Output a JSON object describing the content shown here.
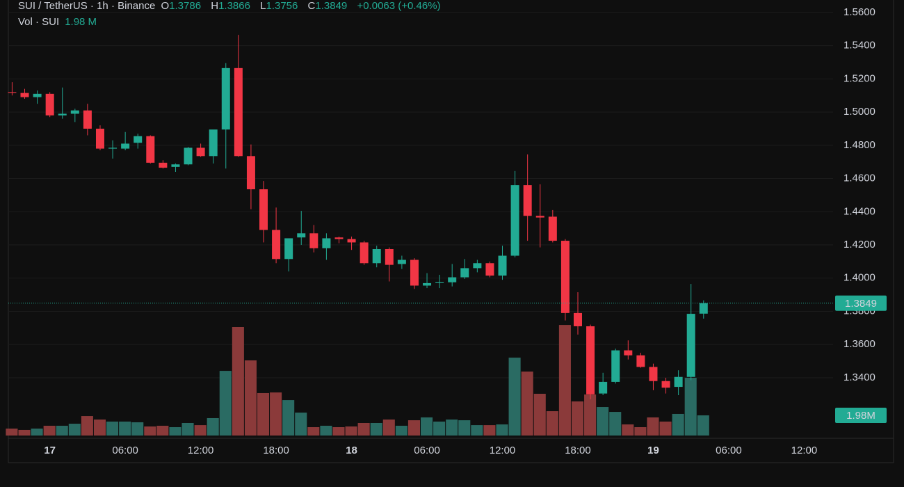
{
  "chart_data": {
    "type": "candlestick",
    "title": "SUI / TetherUS · 1h · Binance",
    "ohlc_labels": [
      "O",
      "H",
      "L",
      "C"
    ],
    "change": "+0.0063 (+0.46%)",
    "up_color": "#22ab94",
    "down_color": "#f23645",
    "grid": true,
    "last_price_line": true,
    "x": [
      -3,
      -2,
      -1,
      0,
      1,
      2,
      3,
      4,
      5,
      6,
      7,
      8,
      9,
      10,
      11,
      12,
      13,
      14,
      15,
      16,
      17,
      18,
      19,
      20,
      21,
      22,
      23,
      24,
      25,
      26,
      27,
      28,
      29,
      30,
      31,
      32,
      33,
      34,
      35,
      36,
      37,
      38,
      39,
      40,
      41,
      42,
      43,
      44,
      45,
      46,
      47,
      48,
      49,
      50,
      51,
      52
    ],
    "open": [
      1.512,
      1.5115,
      1.509,
      1.511,
      1.498,
      1.499,
      1.501,
      1.49,
      1.478,
      1.478,
      1.4815,
      1.4855,
      1.4695,
      1.467,
      1.4685,
      1.4785,
      1.4735,
      1.4895,
      1.5265,
      1.4735,
      1.4535,
      1.429,
      1.4115,
      1.4245,
      1.427,
      1.418,
      1.4245,
      1.4235,
      1.4215,
      1.409,
      1.4175,
      1.4085,
      1.411,
      1.3955,
      1.397,
      1.3975,
      1.4005,
      1.406,
      1.409,
      1.4015,
      1.4135,
      1.456,
      1.4375,
      1.437,
      1.4225,
      1.379,
      1.371,
      1.3305,
      1.3375,
      1.3565,
      1.3535,
      1.3465,
      1.338,
      1.3345,
      1.3405,
      1.3786
    ],
    "high": [
      1.518,
      1.514,
      1.513,
      1.512,
      1.5148,
      1.502,
      1.505,
      1.492,
      1.483,
      1.488,
      1.487,
      1.486,
      1.471,
      1.469,
      1.479,
      1.481,
      1.489,
      1.5295,
      1.5465,
      1.4805,
      1.4585,
      1.4425,
      1.424,
      1.4405,
      1.432,
      1.427,
      1.425,
      1.425,
      1.4225,
      1.4195,
      1.4185,
      1.4135,
      1.412,
      1.403,
      1.402,
      1.4085,
      1.4115,
      1.411,
      1.41,
      1.4195,
      1.4645,
      1.4745,
      1.4565,
      1.441,
      1.4235,
      1.3915,
      1.372,
      1.343,
      1.3575,
      1.3625,
      1.355,
      1.3485,
      1.34,
      1.3445,
      1.3965,
      1.3866
    ],
    "low": [
      1.51,
      1.508,
      1.505,
      1.497,
      1.496,
      1.494,
      1.486,
      1.477,
      1.472,
      1.477,
      1.478,
      1.469,
      1.466,
      1.464,
      1.468,
      1.473,
      1.469,
      1.466,
      1.473,
      1.4415,
      1.4215,
      1.409,
      1.404,
      1.42,
      1.4155,
      1.411,
      1.421,
      1.417,
      1.408,
      1.4065,
      1.398,
      1.4055,
      1.3935,
      1.394,
      1.394,
      1.395,
      1.3995,
      1.4035,
      1.4005,
      1.399,
      1.4125,
      1.4225,
      1.4185,
      1.4215,
      1.3745,
      1.366,
      1.327,
      1.3295,
      1.3365,
      1.351,
      1.346,
      1.3325,
      1.3305,
      1.3295,
      1.3385,
      1.3756
    ],
    "close": [
      1.5115,
      1.509,
      1.511,
      1.498,
      1.499,
      1.501,
      1.49,
      1.478,
      1.4785,
      1.481,
      1.4855,
      1.4695,
      1.4665,
      1.4685,
      1.4785,
      1.4735,
      1.4895,
      1.5265,
      1.4735,
      1.4535,
      1.429,
      1.4115,
      1.424,
      1.427,
      1.418,
      1.424,
      1.4235,
      1.4215,
      1.409,
      1.4175,
      1.408,
      1.411,
      1.3955,
      1.397,
      1.3975,
      1.4005,
      1.406,
      1.409,
      1.4015,
      1.4135,
      1.456,
      1.4375,
      1.4365,
      1.4225,
      1.379,
      1.371,
      1.33,
      1.3375,
      1.3565,
      1.3535,
      1.3465,
      1.338,
      1.334,
      1.3405,
      1.3785,
      1.3849
    ],
    "xlim": [
      -3.3,
      62.3
    ],
    "xticks": [
      {
        "value": 0,
        "label": "17"
      },
      {
        "value": 6,
        "label": "06:00"
      },
      {
        "value": 12,
        "label": "12:00"
      },
      {
        "value": 18,
        "label": "18:00"
      },
      {
        "value": 24,
        "label": "18"
      },
      {
        "value": 30,
        "label": "06:00"
      },
      {
        "value": 36,
        "label": "12:00"
      },
      {
        "value": 42,
        "label": "18:00"
      },
      {
        "value": 48,
        "label": "19"
      },
      {
        "value": 54,
        "label": "06:00"
      },
      {
        "value": 60,
        "label": "12:00"
      }
    ],
    "ylim": [
      1.3052,
      1.5675
    ],
    "yticks": [
      {
        "value": 1.34,
        "label": "1.3400"
      },
      {
        "value": 1.36,
        "label": "1.3600"
      },
      {
        "value": 1.38,
        "label": "1.3800"
      },
      {
        "value": 1.4,
        "label": "1.4000"
      },
      {
        "value": 1.42,
        "label": "1.4200"
      },
      {
        "value": 1.44,
        "label": "1.4400"
      },
      {
        "value": 1.46,
        "label": "1.4600"
      },
      {
        "value": 1.48,
        "label": "1.4800"
      },
      {
        "value": 1.5,
        "label": "1.5000"
      },
      {
        "value": 1.52,
        "label": "1.5200"
      },
      {
        "value": 1.54,
        "label": "1.5400"
      },
      {
        "value": 1.56,
        "label": "1.5600"
      }
    ],
    "volume": {
      "name": "Vol · SUI",
      "up_color": "#2a6b63",
      "down_color": "#8b3a3a",
      "ylim": [
        0,
        41
      ],
      "values": [
        0.68,
        0.55,
        0.68,
        0.96,
        0.96,
        1.16,
        1.91,
        1.57,
        1.37,
        1.37,
        1.3,
        0.89,
        0.96,
        0.82,
        1.23,
        1.02,
        1.71,
        6.35,
        10.66,
        7.38,
        4.17,
        4.23,
        3.48,
        2.25,
        0.82,
        0.96,
        0.82,
        0.89,
        1.23,
        1.23,
        1.57,
        0.96,
        1.5,
        1.78,
        1.37,
        1.57,
        1.5,
        1.02,
        1.02,
        1.09,
        7.65,
        6.28,
        4.1,
        2.39,
        10.86,
        3.35,
        4.03,
        2.8,
        2.32,
        1.09,
        0.82,
        1.78,
        1.37,
        2.12,
        5.67,
        1.98
      ],
      "last_label": "1.98 M",
      "badge_label": "1.98M"
    }
  }
}
